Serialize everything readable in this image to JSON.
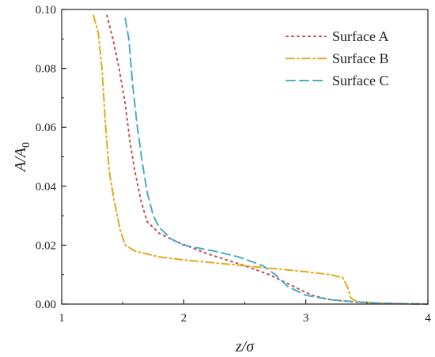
{
  "chart_data": {
    "type": "line",
    "title": "",
    "xlabel": "z/σ",
    "ylabel": "A/A0",
    "ylabel_main": "A/A",
    "ylabel_sub": "0",
    "xlim": [
      1,
      4
    ],
    "ylim": [
      0,
      0.1
    ],
    "x_ticks": [
      "1",
      "2",
      "3",
      "4"
    ],
    "y_ticks": [
      "0.00",
      "0.02",
      "0.04",
      "0.06",
      "0.08",
      "0.10"
    ],
    "grid": false,
    "legend_position": "top-right",
    "series": [
      {
        "name": "Surface A",
        "color": "#c0504d",
        "style": "dotted",
        "points": [
          [
            1.37,
            0.098
          ],
          [
            1.42,
            0.09
          ],
          [
            1.47,
            0.08
          ],
          [
            1.52,
            0.068
          ],
          [
            1.56,
            0.055
          ],
          [
            1.6,
            0.045
          ],
          [
            1.65,
            0.035
          ],
          [
            1.7,
            0.028
          ],
          [
            1.8,
            0.024
          ],
          [
            1.95,
            0.021
          ],
          [
            2.2,
            0.017
          ],
          [
            2.5,
            0.013
          ],
          [
            2.7,
            0.01
          ],
          [
            2.9,
            0.006
          ],
          [
            3.05,
            0.003
          ],
          [
            3.2,
            0.0015
          ],
          [
            3.4,
            0.0007
          ],
          [
            3.6,
            0.0003
          ],
          [
            3.85,
            0.0001
          ],
          [
            4.0,
            0.0
          ]
        ]
      },
      {
        "name": "Surface B",
        "color": "#e6a817",
        "style": "dashdot",
        "points": [
          [
            1.26,
            0.098
          ],
          [
            1.3,
            0.092
          ],
          [
            1.33,
            0.08
          ],
          [
            1.36,
            0.06
          ],
          [
            1.39,
            0.045
          ],
          [
            1.43,
            0.035
          ],
          [
            1.48,
            0.025
          ],
          [
            1.52,
            0.02
          ],
          [
            1.6,
            0.018
          ],
          [
            1.8,
            0.016
          ],
          [
            2.0,
            0.015
          ],
          [
            2.5,
            0.013
          ],
          [
            3.0,
            0.011
          ],
          [
            3.2,
            0.01
          ],
          [
            3.3,
            0.009
          ],
          [
            3.34,
            0.006
          ],
          [
            3.37,
            0.002
          ],
          [
            3.42,
            0.0008
          ],
          [
            3.6,
            0.0003
          ],
          [
            3.8,
            0.0001
          ],
          [
            4.0,
            0.0
          ]
        ]
      },
      {
        "name": "Surface C",
        "color": "#4bacc6",
        "style": "dashed",
        "points": [
          [
            1.52,
            0.097
          ],
          [
            1.55,
            0.09
          ],
          [
            1.58,
            0.075
          ],
          [
            1.62,
            0.06
          ],
          [
            1.66,
            0.048
          ],
          [
            1.7,
            0.038
          ],
          [
            1.75,
            0.03
          ],
          [
            1.8,
            0.026
          ],
          [
            1.9,
            0.022
          ],
          [
            2.0,
            0.02
          ],
          [
            2.25,
            0.018
          ],
          [
            2.45,
            0.016
          ],
          [
            2.65,
            0.013
          ],
          [
            2.75,
            0.01
          ],
          [
            2.85,
            0.006
          ],
          [
            3.0,
            0.003
          ],
          [
            3.2,
            0.0015
          ],
          [
            3.4,
            0.0008
          ],
          [
            3.6,
            0.0003
          ],
          [
            3.8,
            0.0001
          ],
          [
            4.0,
            0.0
          ]
        ]
      }
    ]
  }
}
